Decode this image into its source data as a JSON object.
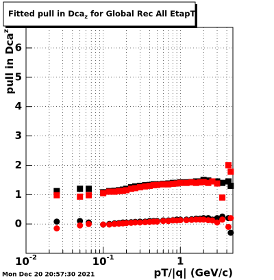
{
  "chart_data": {
    "type": "scatter",
    "title": {
      "text": "Fitted pull in Dca",
      "sub": "z",
      "rest": " for Global Rec All EtapT"
    },
    "y_label": {
      "text": "pull in Dca",
      "sub": "z"
    },
    "x_label": "pT/|q| (GeV/c)",
    "timestamp": "Mon Dec 20 20:57:30 2021",
    "log_x": true,
    "grid": true,
    "xlim": [
      0.01,
      4.8
    ],
    "ylim": [
      -1,
      6.7
    ],
    "xticks": [
      {
        "value": 0.01,
        "label": "10",
        "exponent": "-2"
      },
      {
        "value": 0.1,
        "label": "10",
        "exponent": "-1"
      },
      1
    ],
    "xminorticks": [
      0.02,
      0.03,
      0.04,
      0.05,
      0.06,
      0.07,
      0.08,
      0.09,
      0.2,
      0.3,
      0.4,
      0.5,
      0.6,
      0.7,
      0.8,
      0.9,
      2,
      3,
      4
    ],
    "yticks": [
      0,
      1,
      2,
      3,
      4,
      5,
      6
    ],
    "x": [
      0.025,
      0.05,
      0.065,
      0.1,
      0.12,
      0.14,
      0.16,
      0.18,
      0.2,
      0.23,
      0.26,
      0.3,
      0.35,
      0.4,
      0.45,
      0.5,
      0.6,
      0.7,
      0.8,
      0.9,
      1.0,
      1.2,
      1.4,
      1.6,
      1.8,
      2.0,
      2.3,
      2.6,
      3.0,
      3.5,
      4.2,
      4.5
    ],
    "series": [
      {
        "color": "#000000",
        "marker": "square",
        "values": [
          1.12,
          1.2,
          1.2,
          1.08,
          1.12,
          1.13,
          1.15,
          1.17,
          1.2,
          1.25,
          1.28,
          1.3,
          1.32,
          1.33,
          1.35,
          1.35,
          1.37,
          1.38,
          1.4,
          1.4,
          1.42,
          1.42,
          1.43,
          1.45,
          1.45,
          1.5,
          1.48,
          1.45,
          1.45,
          1.4,
          1.45,
          1.3
        ]
      },
      {
        "color": "#ff0000",
        "marker": "square",
        "values": [
          0.98,
          0.93,
          0.98,
          1.05,
          1.1,
          1.1,
          1.12,
          1.13,
          1.15,
          1.2,
          1.22,
          1.25,
          1.28,
          1.3,
          1.32,
          1.33,
          1.35,
          1.35,
          1.37,
          1.38,
          1.4,
          1.4,
          1.42,
          1.4,
          1.42,
          1.43,
          1.4,
          1.45,
          1.38,
          0.9,
          2.0,
          1.78
        ]
      },
      {
        "color": "#000000",
        "marker": "circle",
        "values": [
          0.08,
          0.1,
          0.05,
          -0.02,
          0.0,
          0.02,
          0.03,
          0.05,
          0.05,
          0.06,
          0.07,
          0.08,
          0.08,
          0.1,
          0.1,
          0.1,
          0.12,
          0.12,
          0.13,
          0.15,
          0.15,
          0.15,
          0.16,
          0.18,
          0.18,
          0.2,
          0.2,
          0.15,
          0.2,
          0.25,
          0.2,
          -0.3
        ]
      },
      {
        "color": "#ff0000",
        "marker": "circle",
        "values": [
          -0.15,
          -0.05,
          0.0,
          -0.02,
          -0.02,
          0.0,
          0.01,
          0.02,
          0.03,
          0.04,
          0.05,
          0.05,
          0.06,
          0.07,
          0.08,
          0.08,
          0.1,
          0.1,
          0.12,
          0.12,
          0.13,
          0.13,
          0.14,
          0.15,
          0.15,
          0.15,
          0.13,
          0.12,
          0.05,
          0.15,
          -0.1,
          0.2
        ]
      }
    ]
  }
}
